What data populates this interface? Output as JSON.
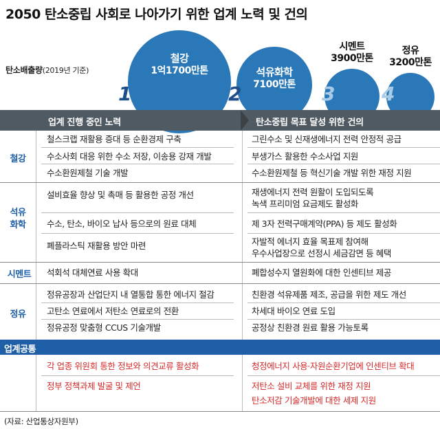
{
  "title": "2050 탄소중립 사회로 나아가기 위한 업계 노력 및 건의",
  "emission": {
    "label": "탄소배출량",
    "sub": "(2019년 기준)"
  },
  "bubbles": [
    {
      "rank": "1",
      "name": "철강",
      "value": "1억1700만톤"
    },
    {
      "rank": "2",
      "name": "석유화학",
      "value": "7100만톤"
    },
    {
      "rank": "3",
      "name": "시멘트",
      "value": "3900만톤"
    },
    {
      "rank": "4",
      "name": "정유",
      "value": "3200만톤"
    }
  ],
  "headers": {
    "left": "업계 진행 중인 노력",
    "right": "탄소중립 목표 달성 위한 건의"
  },
  "sections": {
    "steel": {
      "label": "철강",
      "left": [
        "철스크랩 재활용 증대 등 순환경제 구축",
        "수소사회 대응 위한 수소 저장, 이송용 강재 개발",
        "수소환원제철 기술 개발"
      ],
      "right": [
        "그린수소 및 신재생에너지 전력 안정적 공급",
        "부생가스 활용한 수소사업 지원",
        "수소환원제철 등 혁신기술 개발 위한 재정 지원"
      ]
    },
    "petro": {
      "label1": "석유",
      "label2": "화학",
      "left": [
        "설비효율 향상 및 촉매 등 활용한 공정 개선",
        "수소, 탄소, 바이오 납사 등으로의 원료 대체",
        "폐플라스틱 재활용 방안 마련"
      ],
      "right": [
        "재생에너지 전력 원활이 도입되도록",
        "녹색 프리미엄 요금제도 활성화",
        "제 3자 전력구매계약(PPA) 등 제도 활성화",
        "자발적 에너지 효율 목표제 참여해",
        "우수사업장으로 선정시 세금감면 등 혜택"
      ]
    },
    "cement": {
      "label": "시멘트",
      "left": [
        "석회석 대체연료 사용 확대"
      ],
      "right": [
        "폐합성수지 열원화에 대한 인센티브 제공"
      ]
    },
    "refinery": {
      "label": "정유",
      "left": [
        "정유공장과 산업단지 내 열통합 통한 에너지 절감",
        "고탄소 연료에서 저탄소 연료로의 전환",
        "정유공정 맞춤형 CCUS 기술개발"
      ],
      "right": [
        "친환경 석유제품 제조, 공급을 위한 제도 개선",
        "차세대 바이오 연료 도입",
        "공정상 친환경 원료 활용 가능토록"
      ]
    },
    "common": {
      "label": "업계공통",
      "left": [
        "각 업종 위원회 통한 정보와 의견교류 활성화",
        "정부 정책과제 발굴 및 제언"
      ],
      "right": [
        "청정에너지 사용·자원순환기업에 인센티브 확대",
        "저탄소 설비 교체를 위한 재정 지원",
        "탄소저감 기술개발에 대한 세제 지원"
      ]
    }
  },
  "source": "(자료: 산업통상자원부)",
  "colors": {
    "accent": "#2b78b8",
    "header": "#505a62",
    "category": "#1f5fa8",
    "common_text": "#d42a2a"
  }
}
